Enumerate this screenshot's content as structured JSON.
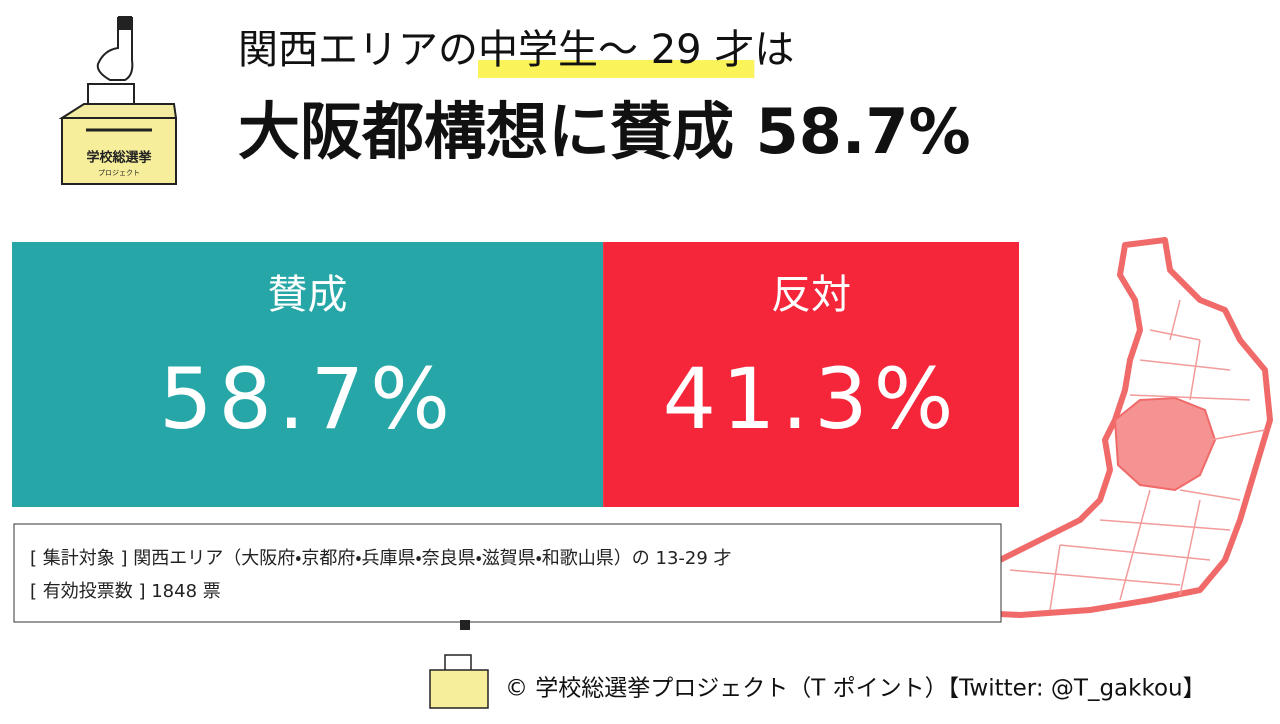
{
  "chart_data": {
    "type": "proportion-bar",
    "title": [
      "関西エリアの",
      "中学生〜 29 才",
      "は"
    ],
    "subtitle": "大阪都構想に賛成 58.7%",
    "categories": [
      "賛成",
      "反対"
    ],
    "values": [
      58.7,
      41.3
    ],
    "value_labels": [
      "58.7%",
      "41.3%"
    ],
    "colors": [
      "#26a6a6",
      "#f5253a"
    ],
    "notes": [
      "[ 集計対象 ] 関西エリア（大阪府・京都府・兵庫県・奈良県・滋賀県・和歌山県）の 13-29 才",
      "[ 有効投票数 ] 1848 票"
    ],
    "logo": [
      "学校総選挙",
      "プロジェクト"
    ],
    "credit": "© 学校総選挙プロジェクト（T ポイント）【Twitter: @T_gakkou】"
  }
}
